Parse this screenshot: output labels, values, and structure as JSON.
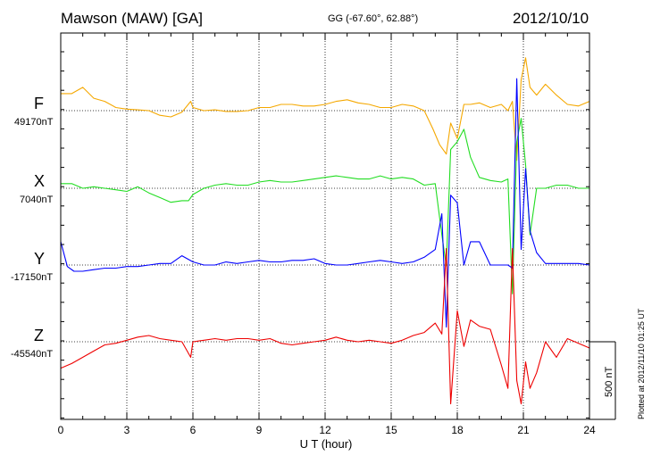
{
  "header": {
    "station": "Mawson (MAW)  [GA]",
    "coords": "GG (-67.60°,  62.88°)",
    "date": "2012/10/10"
  },
  "plotted_note": "Plotted at 2012/11/10 01:25 UT",
  "scale_label": "500 nT",
  "chart_data": {
    "type": "line",
    "xlabel": "U T (hour)",
    "xlim": [
      0,
      24
    ],
    "xticks": [
      0,
      3,
      6,
      9,
      12,
      15,
      18,
      21,
      24
    ],
    "scale_bar_nT": 500,
    "series": [
      {
        "name": "F",
        "baseline_label": "49170nT",
        "color": "#f5a800",
        "x": [
          0,
          0.5,
          1,
          1.5,
          2,
          2.5,
          3,
          3.5,
          4,
          4.5,
          5,
          5.5,
          5.9,
          6,
          6.5,
          7,
          7.5,
          8,
          8.5,
          9,
          9.5,
          10,
          10.5,
          11,
          11.5,
          12,
          12.5,
          13,
          13.5,
          14,
          14.5,
          15,
          15.5,
          16,
          16.5,
          16.9,
          17.2,
          17.5,
          17.7,
          18,
          18.3,
          18.6,
          19,
          19.5,
          20,
          20.3,
          20.5,
          20.7,
          20.9,
          21.1,
          21.3,
          21.6,
          22,
          22.5,
          23,
          23.5,
          24
        ],
        "y": [
          110,
          110,
          150,
          80,
          60,
          20,
          10,
          5,
          0,
          -30,
          -40,
          -10,
          60,
          20,
          0,
          5,
          -5,
          -5,
          0,
          20,
          20,
          40,
          40,
          30,
          30,
          40,
          60,
          70,
          50,
          40,
          20,
          20,
          40,
          30,
          0,
          -120,
          -220,
          -280,
          -80,
          -180,
          40,
          40,
          50,
          20,
          40,
          0,
          60,
          -320,
          200,
          340,
          150,
          100,
          170,
          100,
          40,
          30,
          60
        ]
      },
      {
        "name": "X",
        "baseline_label": "7040nT",
        "color": "#22dd22",
        "x": [
          0,
          0.5,
          1,
          1.5,
          2,
          2.5,
          3,
          3.5,
          4,
          4.5,
          5,
          5.5,
          5.8,
          6,
          6.5,
          7,
          7.5,
          8,
          8.5,
          9,
          9.5,
          10,
          10.5,
          11,
          11.5,
          12,
          12.5,
          13,
          13.5,
          14,
          14.5,
          15,
          15.5,
          16,
          16.5,
          17,
          17.3,
          17.5,
          17.7,
          18,
          18.3,
          18.6,
          19,
          19.5,
          20,
          20.3,
          20.5,
          20.7,
          20.9,
          21.1,
          21.3,
          21.6,
          22,
          22.5,
          23,
          23.5,
          24
        ],
        "y": [
          30,
          30,
          0,
          10,
          0,
          -10,
          -20,
          10,
          -30,
          -60,
          -90,
          -80,
          -80,
          -40,
          0,
          20,
          30,
          20,
          20,
          40,
          50,
          40,
          40,
          50,
          60,
          70,
          80,
          70,
          60,
          60,
          80,
          60,
          70,
          60,
          20,
          30,
          -300,
          -500,
          250,
          300,
          380,
          200,
          70,
          50,
          40,
          60,
          -680,
          300,
          450,
          150,
          -300,
          0,
          0,
          20,
          20,
          0,
          0
        ]
      },
      {
        "name": "Y",
        "baseline_label": "-17150nT",
        "color": "#0000ff",
        "x": [
          0,
          0.3,
          0.6,
          1,
          1.5,
          2,
          2.5,
          3,
          3.5,
          4,
          4.5,
          5,
          5.5,
          6,
          6.5,
          7,
          7.5,
          8,
          8.5,
          9,
          9.5,
          10,
          10.5,
          11,
          11.5,
          12,
          12.5,
          13,
          13.5,
          14,
          14.5,
          15,
          15.5,
          16,
          16.5,
          17,
          17.3,
          17.5,
          17.7,
          18,
          18.3,
          18.6,
          19,
          19.5,
          20,
          20.3,
          20.5,
          20.7,
          20.9,
          21.1,
          21.3,
          21.6,
          22,
          22.5,
          23,
          23.5,
          24
        ],
        "y": [
          150,
          -10,
          -40,
          -40,
          -30,
          -20,
          -20,
          -10,
          -10,
          0,
          10,
          10,
          60,
          20,
          0,
          0,
          20,
          10,
          20,
          30,
          20,
          20,
          30,
          30,
          40,
          10,
          0,
          0,
          10,
          20,
          30,
          20,
          10,
          20,
          50,
          100,
          330,
          -400,
          450,
          400,
          0,
          150,
          150,
          0,
          0,
          0,
          -20,
          1200,
          100,
          620,
          220,
          80,
          10,
          10,
          10,
          10,
          0
        ]
      },
      {
        "name": "Z",
        "baseline_label": "-45540nT",
        "color": "#ee0000",
        "x": [
          0,
          0.5,
          1,
          1.5,
          2,
          2.5,
          3,
          3.5,
          4,
          4.5,
          5,
          5.5,
          5.9,
          6,
          6.5,
          7,
          7.5,
          8,
          8.5,
          9,
          9.5,
          10,
          10.5,
          11,
          11.5,
          12,
          12.5,
          13,
          13.5,
          14,
          14.5,
          15,
          15.5,
          16,
          16.5,
          17,
          17.3,
          17.5,
          17.7,
          18,
          18.3,
          18.6,
          19,
          19.5,
          20,
          20.3,
          20.5,
          20.7,
          20.9,
          21.1,
          21.3,
          21.6,
          22,
          22.5,
          23,
          23.5,
          24
        ],
        "y": [
          -170,
          -140,
          -100,
          -60,
          -20,
          -10,
          10,
          30,
          40,
          20,
          10,
          0,
          -100,
          0,
          10,
          20,
          10,
          20,
          20,
          10,
          20,
          -10,
          -20,
          -10,
          0,
          10,
          30,
          10,
          0,
          10,
          0,
          -10,
          10,
          40,
          60,
          120,
          50,
          600,
          -400,
          200,
          -30,
          140,
          100,
          80,
          -150,
          -300,
          600,
          -250,
          -400,
          -130,
          -300,
          -200,
          0,
          -100,
          20,
          -10,
          -40
        ]
      }
    ]
  }
}
